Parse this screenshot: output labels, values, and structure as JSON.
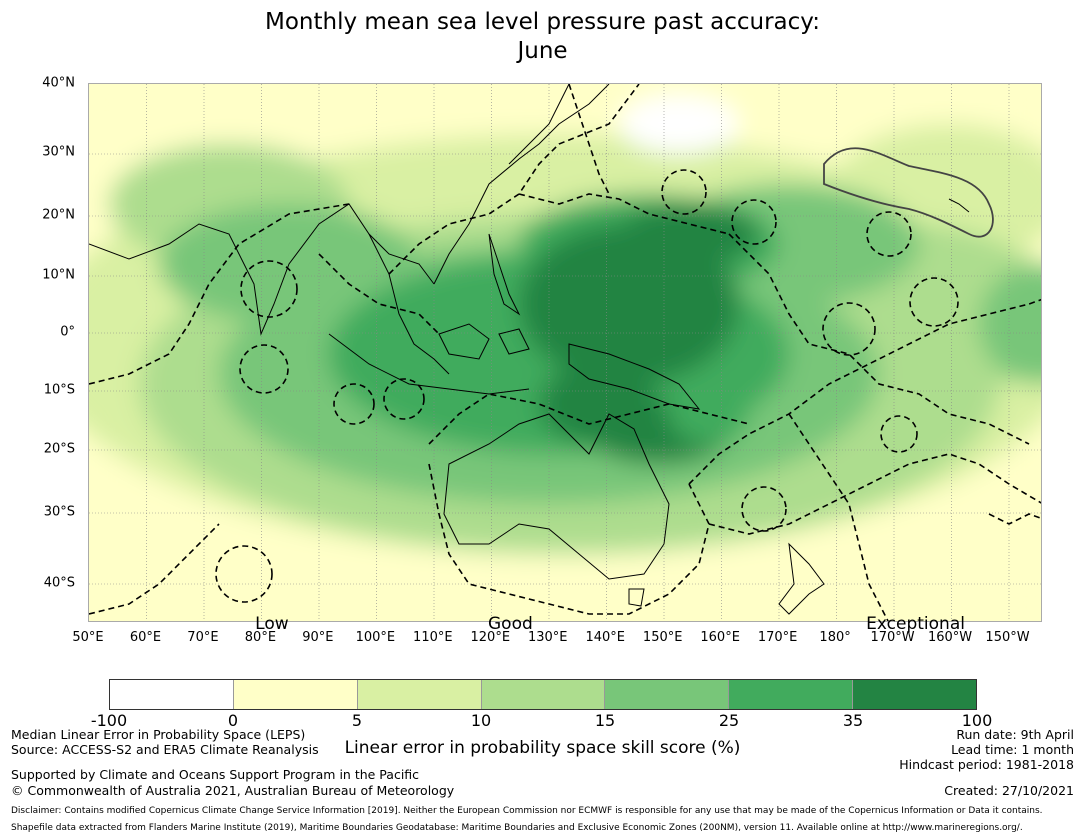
{
  "title": {
    "line1": "Monthly mean sea level pressure past accuracy:",
    "line2": "June"
  },
  "map": {
    "lat_labels": [
      "40°N",
      "30°N",
      "20°N",
      "10°N",
      "0°",
      "10°S",
      "20°S",
      "30°S",
      "40°S"
    ],
    "lat_values": [
      40,
      30,
      20,
      10,
      0,
      -10,
      -20,
      -30,
      -40
    ],
    "lon_labels": [
      "50°E",
      "60°E",
      "70°E",
      "80°E",
      "90°E",
      "100°E",
      "110°E",
      "120°E",
      "130°E",
      "140°E",
      "150°E",
      "160°E",
      "170°E",
      "180°",
      "170°W",
      "160°W",
      "150°W"
    ],
    "lon_values": [
      50,
      60,
      70,
      80,
      90,
      100,
      110,
      120,
      130,
      140,
      150,
      160,
      170,
      180,
      190,
      200,
      210
    ],
    "categories": [
      {
        "label": "Low",
        "lon": 82
      },
      {
        "label": "Good",
        "lon": 123.5
      },
      {
        "label": "Exceptional",
        "lon": 194
      }
    ],
    "extent": {
      "lon_min": 50,
      "lon_max": 216,
      "lat_min": -46,
      "lat_max": 40
    }
  },
  "colorbar": {
    "ticks": [
      "-100",
      "0",
      "5",
      "10",
      "15",
      "25",
      "35",
      "100"
    ],
    "colors": [
      "#ffffff",
      "#ffffc8",
      "#d9f0a3",
      "#addd8e",
      "#78c679",
      "#41ab5d",
      "#238443"
    ],
    "label": "Linear error in probability space skill score (%)"
  },
  "footer": {
    "left1": "Median Linear Error in Probability Space (LEPS)",
    "left2": "Source: ACCESS-S2 and ERA5 Climate Reanalysis",
    "left3": "Supported by Climate and Oceans Support Program in the Pacific",
    "left4": "© Commonwealth of Australia 2021, Australian Bureau of Meteorology",
    "right1": "Run date: 9th April",
    "right2": "Lead time: 1 month",
    "right3": "Hindcast period: 1981-2018",
    "created": "Created: 27/10/2021",
    "disclaimer1": "Disclaimer: Contains modified Copernicus Climate Change Service Information [2019]. Neither the European Commission nor ECMWF is responsible for any use that may be made of the Copernicus Information or Data it contains.",
    "disclaimer2": "Shapefile data extracted from Flanders Marine Institute (2019), Maritime Boundaries Geodatabase: Maritime Boundaries and Exclusive Economic Zones (200NM), version 11. Available online at http://www.marineregions.org/."
  }
}
